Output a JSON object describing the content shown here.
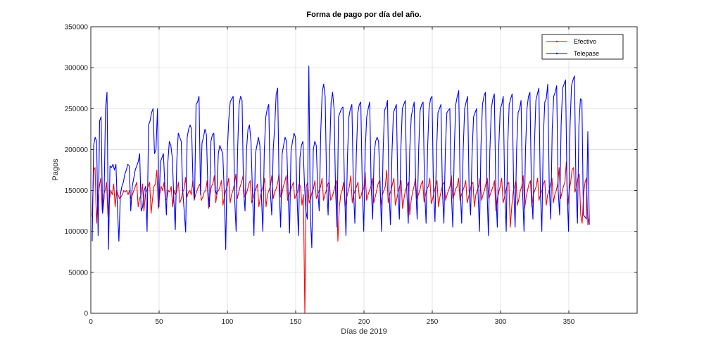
{
  "chart_data": {
    "type": "line",
    "title": "Forma de pago por día del año.",
    "xlabel": "Días de 2019",
    "ylabel": "Pagos",
    "xlim": [
      0,
      400
    ],
    "ylim": [
      0,
      350000
    ],
    "xticks": [
      0,
      50,
      100,
      150,
      200,
      250,
      300,
      350
    ],
    "yticks": [
      0,
      50000,
      100000,
      150000,
      200000,
      250000,
      300000,
      350000
    ],
    "grid": true,
    "legend_position": "top-right",
    "series": [
      {
        "name": "Efectivo",
        "color": "#ff0000",
        "values": [
          118000,
          175000,
          178000,
          110000,
          140000,
          155000,
          165000,
          125000,
          145000,
          150000,
          160000,
          118000,
          138000,
          150000,
          145000,
          158000,
          130000,
          150000,
          145000,
          140000,
          142000,
          145000,
          150000,
          148000,
          150000,
          145000,
          150000,
          140000,
          145000,
          150000,
          155000,
          160000,
          130000,
          140000,
          145000,
          158000,
          125000,
          145000,
          150000,
          155000,
          160000,
          122000,
          140000,
          155000,
          158000,
          175000,
          128000,
          145000,
          155000,
          150000,
          160000,
          138000,
          140000,
          150000,
          148000,
          155000,
          130000,
          150000,
          145000,
          150000,
          160000,
          135000,
          140000,
          148000,
          152000,
          166000,
          142000,
          148000,
          150000,
          145000,
          162000,
          138000,
          145000,
          150000,
          155000,
          158000,
          138000,
          142000,
          148000,
          150000,
          162000,
          128000,
          145000,
          155000,
          158000,
          168000,
          135000,
          148000,
          150000,
          155000,
          162000,
          132000,
          142000,
          150000,
          155000,
          165000,
          135000,
          145000,
          150000,
          158000,
          170000,
          140000,
          148000,
          155000,
          160000,
          168000,
          142000,
          145000,
          150000,
          158000,
          162000,
          135000,
          140000,
          148000,
          152000,
          158000,
          130000,
          142000,
          150000,
          155000,
          165000,
          130000,
          145000,
          150000,
          155000,
          168000,
          140000,
          148000,
          152000,
          158000,
          170000,
          142000,
          145000,
          155000,
          160000,
          168000,
          138000,
          145000,
          150000,
          155000,
          160000,
          140000,
          145000,
          148000,
          158000,
          155000,
          132000,
          145000,
          0,
          155000,
          160000,
          135000,
          140000,
          148000,
          152000,
          162000,
          140000,
          145000,
          150000,
          155000,
          165000,
          138000,
          145000,
          150000,
          158000,
          160000,
          138000,
          142000,
          148000,
          155000,
          162000,
          88000,
          130000,
          145000,
          150000,
          160000,
          130000,
          140000,
          148000,
          155000,
          168000,
          135000,
          145000,
          150000,
          155000,
          160000,
          140000,
          142000,
          150000,
          152000,
          172000,
          138000,
          145000,
          150000,
          155000,
          165000,
          135000,
          142000,
          150000,
          158000,
          162000,
          132000,
          145000,
          150000,
          155000,
          175000,
          135000,
          145000,
          150000,
          158000,
          165000,
          132000,
          140000,
          148000,
          155000,
          162000,
          128000,
          140000,
          150000,
          155000,
          160000,
          120000,
          138000,
          148000,
          155000,
          165000,
          140000,
          145000,
          150000,
          158000,
          162000,
          136000,
          145000,
          152000,
          155000,
          165000,
          134000,
          140000,
          148000,
          155000,
          162000,
          130000,
          142000,
          150000,
          158000,
          160000,
          138000,
          145000,
          150000,
          155000,
          168000,
          140000,
          145000,
          152000,
          155000,
          165000,
          138000,
          145000,
          150000,
          155000,
          162000,
          135000,
          142000,
          150000,
          158000,
          160000,
          130000,
          145000,
          150000,
          155000,
          165000,
          138000,
          145000,
          150000,
          158000,
          165000,
          140000,
          145000,
          150000,
          155000,
          162000,
          125000,
          140000,
          148000,
          155000,
          165000,
          135000,
          142000,
          150000,
          158000,
          160000,
          105000,
          130000,
          148000,
          155000,
          162000,
          132000,
          140000,
          150000,
          155000,
          168000,
          128000,
          142000,
          150000,
          158000,
          162000,
          130000,
          145000,
          150000,
          155000,
          165000,
          138000,
          145000,
          150000,
          158000,
          162000,
          132000,
          145000,
          150000,
          158000,
          165000,
          135000,
          145000,
          150000,
          158000,
          178000,
          140000,
          148000,
          155000,
          160000,
          185000,
          132000,
          150000,
          160000,
          175000,
          178000,
          148000,
          155000,
          165000,
          170000,
          120000,
          110000,
          145000,
          160000,
          165000,
          108000,
          120000
        ]
      },
      {
        "name": "Telepase",
        "color": "#0000ff",
        "values": [
          88000,
          205000,
          215000,
          210000,
          95000,
          235000,
          240000,
          122000,
          140000,
          250000,
          270000,
          78000,
          180000,
          178000,
          182000,
          175000,
          182000,
          130000,
          88000,
          145000,
          155000,
          160000,
          170000,
          175000,
          182000,
          180000,
          125000,
          155000,
          165000,
          175000,
          180000,
          185000,
          195000,
          125000,
          130000,
          150000,
          155000,
          100000,
          230000,
          235000,
          245000,
          250000,
          195000,
          200000,
          250000,
          130000,
          185000,
          190000,
          195000,
          155000,
          120000,
          185000,
          210000,
          205000,
          190000,
          140000,
          102000,
          185000,
          220000,
          215000,
          210000,
          150000,
          125000,
          99000,
          215000,
          225000,
          230000,
          225000,
          155000,
          140000,
          255000,
          258000,
          265000,
          145000,
          208000,
          215000,
          225000,
          218000,
          150000,
          130000,
          210000,
          218000,
          220000,
          150000,
          145000,
          195000,
          205000,
          200000,
          195000,
          148000,
          78000,
          195000,
          235000,
          258000,
          262000,
          265000,
          140000,
          100000,
          200000,
          255000,
          265000,
          260000,
          150000,
          125000,
          200000,
          225000,
          230000,
          210000,
          148000,
          95000,
          195000,
          205000,
          215000,
          205000,
          145000,
          100000,
          200000,
          240000,
          250000,
          255000,
          150000,
          120000,
          200000,
          228000,
          268000,
          275000,
          150000,
          105000,
          195000,
          205000,
          215000,
          210000,
          148000,
          98000,
          198000,
          210000,
          220000,
          215000,
          145000,
          95000,
          190000,
          205000,
          210000,
          160000,
          125000,
          115000,
          302000,
          120000,
          80000,
          200000,
          210000,
          205000,
          150000,
          125000,
          220000,
          270000,
          280000,
          265000,
          155000,
          120000,
          195000,
          258000,
          270000,
          250000,
          150000,
          105000,
          240000,
          245000,
          250000,
          252000,
          155000,
          95000,
          190000,
          240000,
          250000,
          255000,
          155000,
          110000,
          195000,
          245000,
          255000,
          258000,
          155000,
          100000,
          200000,
          240000,
          250000,
          258000,
          155000,
          115000,
          195000,
          210000,
          215000,
          210000,
          160000,
          100000,
          195000,
          248000,
          252000,
          260000,
          150000,
          108000,
          195000,
          245000,
          250000,
          255000,
          150000,
          115000,
          200000,
          250000,
          255000,
          260000,
          150000,
          110000,
          200000,
          240000,
          250000,
          258000,
          155000,
          115000,
          200000,
          248000,
          255000,
          258000,
          152000,
          110000,
          200000,
          250000,
          262000,
          265000,
          150000,
          112000,
          195000,
          245000,
          250000,
          255000,
          150000,
          110000,
          200000,
          245000,
          248000,
          250000,
          148000,
          105000,
          200000,
          255000,
          265000,
          272000,
          150000,
          110000,
          200000,
          250000,
          258000,
          265000,
          150000,
          120000,
          195000,
          240000,
          245000,
          250000,
          148000,
          100000,
          205000,
          255000,
          265000,
          270000,
          155000,
          95000,
          200000,
          250000,
          262000,
          268000,
          150000,
          105000,
          205000,
          250000,
          255000,
          265000,
          150000,
          100000,
          205000,
          255000,
          262000,
          268000,
          155000,
          105000,
          200000,
          245000,
          250000,
          260000,
          150000,
          100000,
          200000,
          250000,
          265000,
          270000,
          150000,
          115000,
          205000,
          260000,
          268000,
          275000,
          150000,
          100000,
          215000,
          258000,
          262000,
          280000,
          155000,
          115000,
          225000,
          265000,
          270000,
          278000,
          150000,
          120000,
          230000,
          275000,
          280000,
          285000,
          150000,
          100000,
          228000,
          278000,
          285000,
          290000,
          155000,
          110000,
          230000,
          262000,
          260000,
          120000,
          118000,
          115000,
          222000,
          108000
        ]
      }
    ]
  }
}
